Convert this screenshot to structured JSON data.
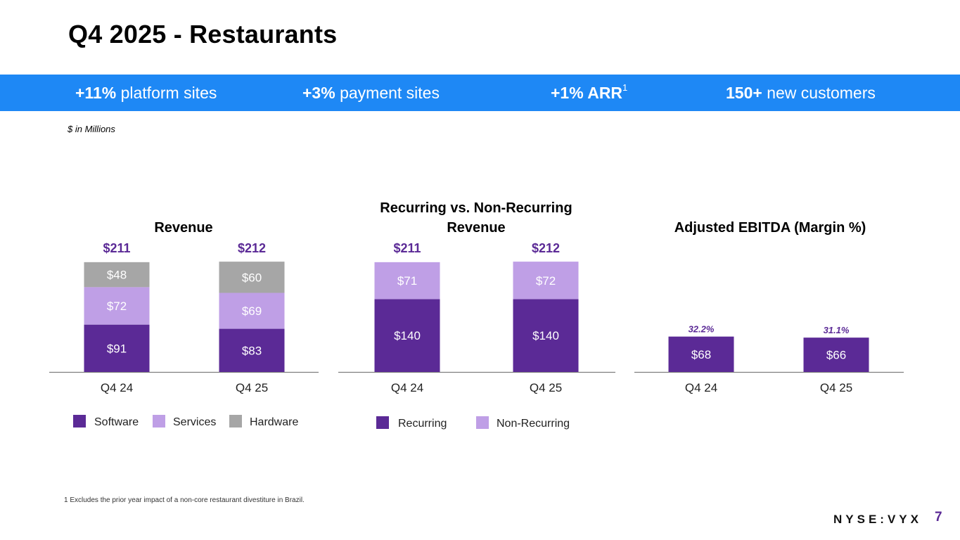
{
  "title": "Q4 2025 - Restaurants",
  "kpis": [
    {
      "value": "+11%",
      "label": "platform sites",
      "sup": ""
    },
    {
      "value": "+3%",
      "label": "payment sites",
      "sup": ""
    },
    {
      "value": "+1% ARR",
      "label": "",
      "sup": "1"
    },
    {
      "value": "150+",
      "label": "new customers",
      "sup": ""
    }
  ],
  "units_note": "$ in Millions",
  "footnote": "1 Excludes the prior year impact of a non-core restaurant divestiture in Brazil.",
  "ticker": "NYSE:VYX",
  "page_number": "7",
  "colors": {
    "banner": "#1E88F5",
    "software": "#5B2A96",
    "services": "#BF9FE6",
    "hardware": "#A6A6A6",
    "total_label": "#5B2A96"
  },
  "chart_data": [
    {
      "type": "bar",
      "stacked": true,
      "title": "Revenue",
      "categories": [
        "Q4 24",
        "Q4 25"
      ],
      "series": [
        {
          "name": "Software",
          "values": [
            91,
            83
          ],
          "labels": [
            "$91",
            "$83"
          ]
        },
        {
          "name": "Services",
          "values": [
            72,
            69
          ],
          "labels": [
            "$72",
            "$69"
          ]
        },
        {
          "name": "Hardware",
          "values": [
            48,
            60
          ],
          "labels": [
            "$48",
            "$60"
          ]
        }
      ],
      "totals": [
        "$211",
        "$212"
      ],
      "legend": [
        "Software",
        "Services",
        "Hardware"
      ]
    },
    {
      "type": "bar",
      "stacked": true,
      "title": "Recurring vs. Non-Recurring Revenue",
      "categories": [
        "Q4 24",
        "Q4 25"
      ],
      "series": [
        {
          "name": "Recurring",
          "values": [
            140,
            140
          ],
          "labels": [
            "$140",
            "$140"
          ]
        },
        {
          "name": "Non-Recurring",
          "values": [
            71,
            72
          ],
          "labels": [
            "$71",
            "$72"
          ]
        }
      ],
      "totals": [
        "$211",
        "$212"
      ],
      "legend": [
        "Recurring",
        "Non-Recurring"
      ]
    },
    {
      "type": "bar",
      "stacked": false,
      "title": "Adjusted EBITDA (Margin %)",
      "categories": [
        "Q4 24",
        "Q4 25"
      ],
      "series": [
        {
          "name": "Adjusted EBITDA",
          "values": [
            68,
            66
          ],
          "labels": [
            "$68",
            "$66"
          ]
        }
      ],
      "margins": [
        "32.2%",
        "31.1%"
      ],
      "legend": []
    }
  ]
}
